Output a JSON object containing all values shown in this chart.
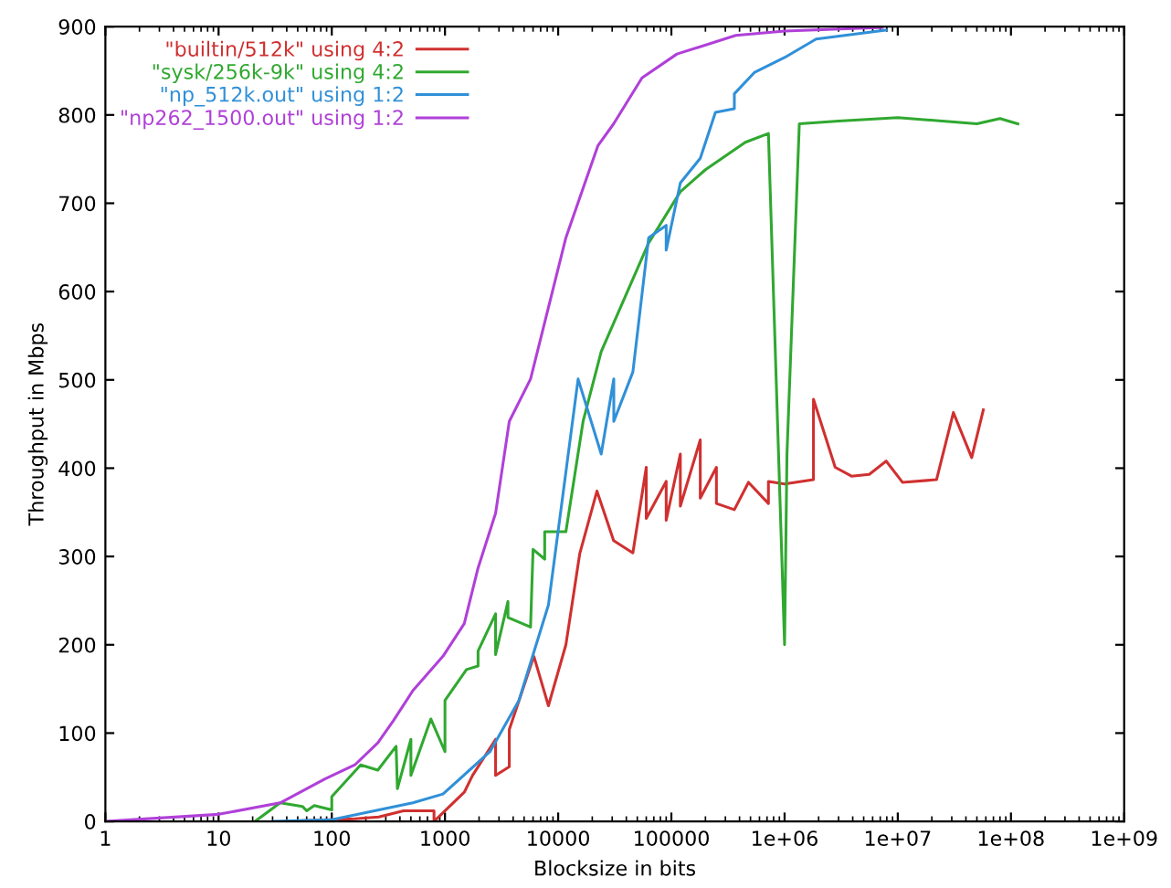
{
  "chart_data": {
    "type": "line",
    "xlabel": "Blocksize in bits",
    "ylabel": "Throughput in Mbps",
    "log": "x",
    "xlim": [
      1,
      1000000000
    ],
    "ylim": [
      0,
      900
    ],
    "xticks": [
      1,
      10,
      100,
      1000,
      10000,
      100000,
      {
        "value": 1000000,
        "label": "1e+06"
      },
      {
        "value": 10000000,
        "label": "1e+07"
      },
      {
        "value": 100000000,
        "label": "1e+08"
      },
      {
        "value": 1000000000,
        "label": "1e+09"
      }
    ],
    "yticks": [
      0,
      100,
      200,
      300,
      400,
      500,
      600,
      700,
      800,
      900
    ],
    "grid": false,
    "legend": "top left",
    "marker": "none",
    "line_style": "solid",
    "series": [
      {
        "name": "\"builtin/512k\" using 4:2",
        "color": "#d03030",
        "x": [
          40,
          160,
          260,
          430,
          800,
          800,
          1480,
          1750,
          2800,
          2800,
          3700,
          3700,
          6100,
          8200,
          11700,
          15500,
          22000,
          30900,
          45700,
          60000,
          60000,
          90000,
          90000,
          120000,
          120000,
          180000,
          180000,
          250000,
          250000,
          360000,
          480000,
          720000,
          720000,
          1000000,
          1800000,
          1800000,
          2800000,
          3900000,
          5600000,
          7900000,
          11000000,
          22000000,
          31000000,
          45000000,
          57000000
        ],
        "values": [
          0,
          3,
          5,
          12,
          12,
          0,
          33,
          52,
          93,
          52,
          62,
          104,
          187,
          131,
          200,
          303,
          374,
          318,
          304,
          401,
          343,
          385,
          341,
          416,
          357,
          432,
          366,
          401,
          360,
          353,
          384,
          360,
          385,
          382,
          387,
          478,
          401,
          391,
          393,
          408,
          384,
          387,
          463,
          412,
          466
        ]
      },
      {
        "name": "\"sysk/256k-9k\" using 4:2",
        "color": "#30a830",
        "x": [
          21,
          35,
          55,
          60,
          70,
          100,
          100,
          180,
          255,
          370,
          380,
          500,
          500,
          750,
          1000,
          1000,
          1550,
          1960,
          1960,
          2800,
          2800,
          3600,
          3600,
          5700,
          6000,
          7600,
          7600,
          11700,
          16600,
          24000,
          63000,
          120000,
          200000,
          450000,
          720000,
          1000000,
          1050000,
          1350000,
          3000000,
          10000000,
          50000000,
          80000000,
          115000000
        ],
        "values": [
          0,
          21,
          17,
          12,
          18,
          13,
          28,
          64,
          58,
          85,
          37,
          93,
          52,
          116,
          79,
          137,
          172,
          176,
          193,
          235,
          189,
          249,
          231,
          220,
          308,
          297,
          328,
          328,
          453,
          532,
          655,
          713,
          738,
          769,
          779,
          200,
          416,
          790,
          793,
          797,
          790,
          796,
          790
        ]
      },
      {
        "name": "\"np_512k.out\" using 1:2",
        "color": "#3090d8",
        "x": [
          30,
          100,
          520,
          960,
          2500,
          4500,
          8200,
          15000,
          24000,
          31000,
          31000,
          45700,
          63000,
          90000,
          90000,
          120000,
          180000,
          245000,
          360000,
          360000,
          540000,
          1000000,
          1900000,
          7900000
        ],
        "values": [
          0,
          2,
          21,
          31,
          79,
          137,
          245,
          501,
          416,
          501,
          453,
          509,
          661,
          675,
          647,
          723,
          751,
          803,
          807,
          824,
          848,
          865,
          886,
          896
        ]
      },
      {
        "name": "\"np262_1500.out\" using 1:2",
        "color": "#b040d8",
        "x": [
          1,
          10,
          35,
          87,
          160,
          255,
          350,
          520,
          960,
          1480,
          1960,
          2800,
          3700,
          5700,
          11700,
          16600,
          22400,
          30900,
          55000,
          112000,
          370000,
          1000000,
          7300000
        ],
        "values": [
          0,
          8,
          21,
          48,
          64,
          89,
          114,
          148,
          187,
          224,
          287,
          349,
          453,
          501,
          661,
          717,
          765,
          790,
          842,
          869,
          890,
          895,
          899
        ]
      }
    ]
  }
}
